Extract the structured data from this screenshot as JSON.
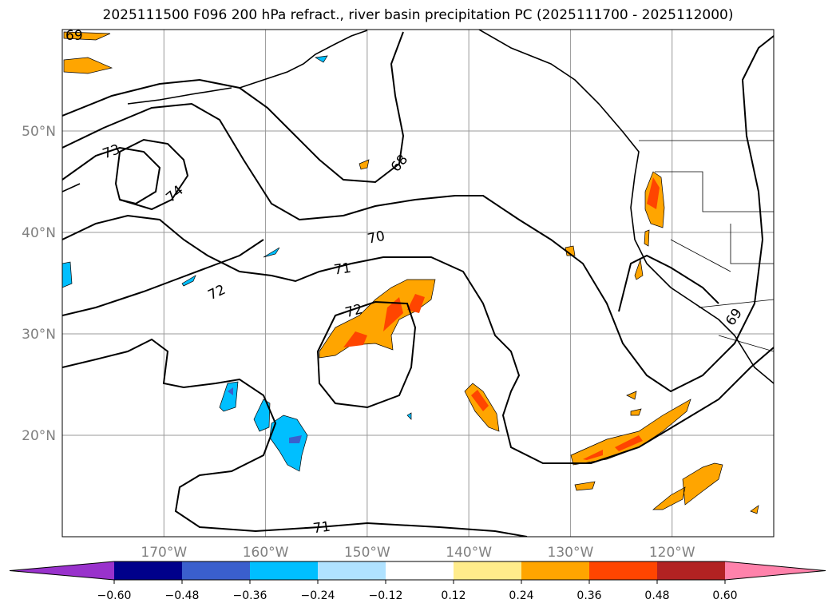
{
  "title": "2025111500 F096 200 hPa refract., river basin precipitation PC (2025111700 - 2025112000)",
  "map": {
    "extent_lon": [
      -180,
      -110
    ],
    "extent_lat": [
      10,
      60
    ],
    "lat_labels": [
      {
        "lat": 50,
        "text": "50°N"
      },
      {
        "lat": 40,
        "text": "40°N"
      },
      {
        "lat": 30,
        "text": "30°N"
      },
      {
        "lat": 20,
        "text": "20°N"
      }
    ],
    "lon_labels": [
      {
        "lon": -170,
        "text": "170°W"
      },
      {
        "lon": -160,
        "text": "160°W"
      },
      {
        "lon": -150,
        "text": "150°W"
      },
      {
        "lon": -140,
        "text": "140°W"
      },
      {
        "lon": -130,
        "text": "130°W"
      },
      {
        "lon": -120,
        "text": "120°W"
      }
    ],
    "contour_labels": [
      "69",
      "68",
      "73",
      "74",
      "70",
      "71",
      "72",
      "72",
      "69",
      "71"
    ]
  },
  "colorbar": {
    "colors": [
      "#9932CC",
      "#00008B",
      "#3A5FCD",
      "#00BFFF",
      "#B0E2FF",
      "#FFFFFF",
      "#FFEC8B",
      "#FFA500",
      "#FF4500",
      "#B22222",
      "#FF82AB"
    ],
    "ticks": [
      "−0.60",
      "−0.48",
      "−0.36",
      "−0.24",
      "−0.12",
      "0.12",
      "0.24",
      "0.36",
      "0.48",
      "0.60"
    ]
  }
}
